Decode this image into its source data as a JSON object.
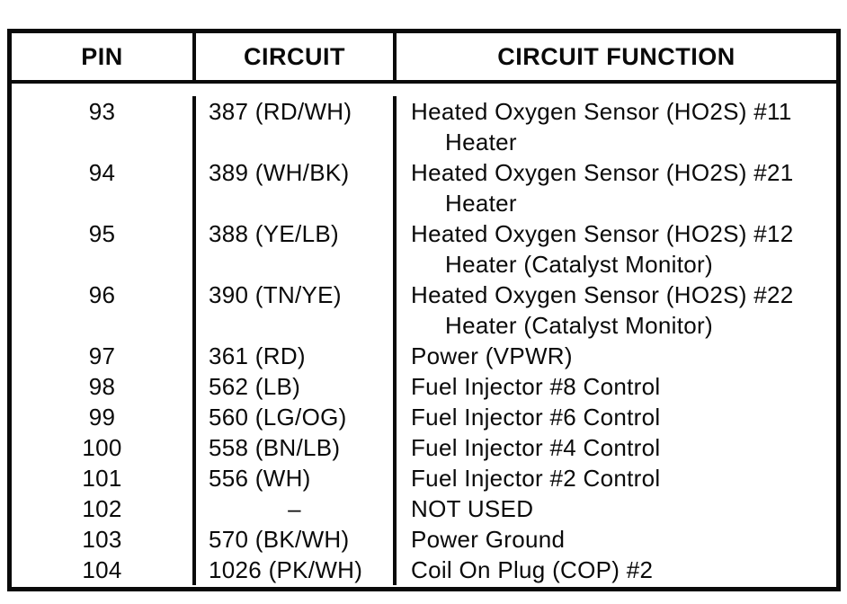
{
  "page": {
    "background_color": "#ffffff",
    "ink_color": "#0a0a0a"
  },
  "table": {
    "columns": [
      {
        "key": "pin",
        "label": "PIN"
      },
      {
        "key": "circuit",
        "label": "CIRCUIT"
      },
      {
        "key": "function",
        "label": "CIRCUIT FUNCTION"
      }
    ],
    "rows": [
      {
        "pin": "93",
        "circuit": "387 (RD/WH)",
        "function_lines": [
          "Heated Oxygen Sensor (HO2S) #11",
          "Heater"
        ]
      },
      {
        "pin": "94",
        "circuit": "389 (WH/BK)",
        "function_lines": [
          "Heated Oxygen Sensor (HO2S) #21",
          "Heater"
        ]
      },
      {
        "pin": "95",
        "circuit": "388 (YE/LB)",
        "function_lines": [
          "Heated Oxygen Sensor (HO2S) #12",
          "Heater (Catalyst Monitor)"
        ]
      },
      {
        "pin": "96",
        "circuit": "390 (TN/YE)",
        "function_lines": [
          "Heated Oxygen Sensor (HO2S) #22",
          "Heater (Catalyst Monitor)"
        ]
      },
      {
        "pin": "97",
        "circuit": "361 (RD)",
        "function_lines": [
          "Power (VPWR)"
        ]
      },
      {
        "pin": "98",
        "circuit": "562 (LB)",
        "function_lines": [
          "Fuel Injector #8 Control"
        ]
      },
      {
        "pin": "99",
        "circuit": "560 (LG/OG)",
        "function_lines": [
          "Fuel Injector #6 Control"
        ]
      },
      {
        "pin": "100",
        "circuit": "558 (BN/LB)",
        "function_lines": [
          "Fuel Injector #4 Control"
        ]
      },
      {
        "pin": "101",
        "circuit": "556 (WH)",
        "function_lines": [
          "Fuel Injector #2 Control"
        ]
      },
      {
        "pin": "102",
        "circuit": "–",
        "function_lines": [
          "NOT USED"
        ]
      },
      {
        "pin": "103",
        "circuit": "570 (BK/WH)",
        "function_lines": [
          "Power Ground"
        ]
      },
      {
        "pin": "104",
        "circuit": "1026 (PK/WH)",
        "function_lines": [
          "Coil On Plug (COP) #2"
        ]
      }
    ]
  }
}
